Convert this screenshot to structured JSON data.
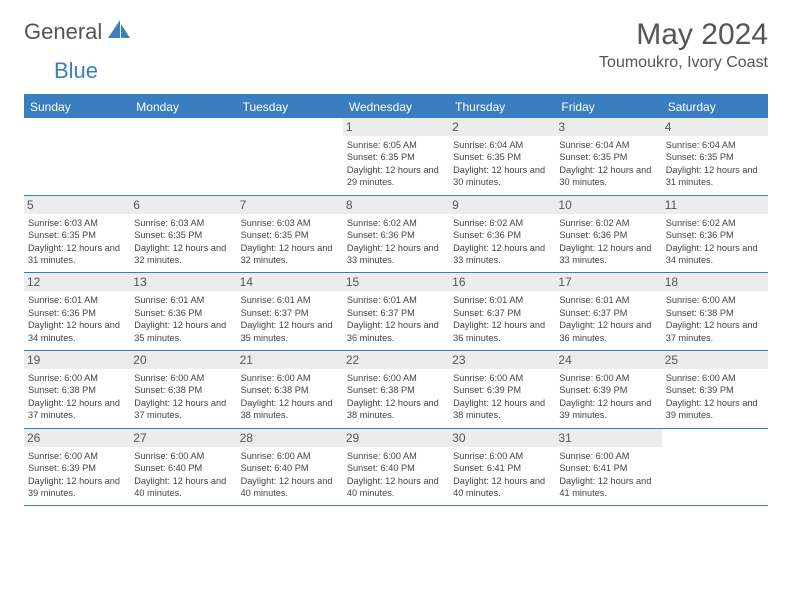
{
  "brand": {
    "part1": "General",
    "part2": "Blue"
  },
  "title": "May 2024",
  "location": "Toumoukro, Ivory Coast",
  "colors": {
    "accent": "#3a7ebf",
    "header_bg": "#3a7ebf",
    "header_text": "#ffffff",
    "daynum_bg": "#ececec",
    "text": "#444444",
    "background": "#ffffff"
  },
  "day_names": [
    "Sunday",
    "Monday",
    "Tuesday",
    "Wednesday",
    "Thursday",
    "Friday",
    "Saturday"
  ],
  "weeks": [
    [
      {
        "empty": true
      },
      {
        "empty": true
      },
      {
        "empty": true
      },
      {
        "day": "1",
        "sunrise": "6:05 AM",
        "sunset": "6:35 PM",
        "daylight": "12 hours and 29 minutes."
      },
      {
        "day": "2",
        "sunrise": "6:04 AM",
        "sunset": "6:35 PM",
        "daylight": "12 hours and 30 minutes."
      },
      {
        "day": "3",
        "sunrise": "6:04 AM",
        "sunset": "6:35 PM",
        "daylight": "12 hours and 30 minutes."
      },
      {
        "day": "4",
        "sunrise": "6:04 AM",
        "sunset": "6:35 PM",
        "daylight": "12 hours and 31 minutes."
      }
    ],
    [
      {
        "day": "5",
        "sunrise": "6:03 AM",
        "sunset": "6:35 PM",
        "daylight": "12 hours and 31 minutes."
      },
      {
        "day": "6",
        "sunrise": "6:03 AM",
        "sunset": "6:35 PM",
        "daylight": "12 hours and 32 minutes."
      },
      {
        "day": "7",
        "sunrise": "6:03 AM",
        "sunset": "6:35 PM",
        "daylight": "12 hours and 32 minutes."
      },
      {
        "day": "8",
        "sunrise": "6:02 AM",
        "sunset": "6:36 PM",
        "daylight": "12 hours and 33 minutes."
      },
      {
        "day": "9",
        "sunrise": "6:02 AM",
        "sunset": "6:36 PM",
        "daylight": "12 hours and 33 minutes."
      },
      {
        "day": "10",
        "sunrise": "6:02 AM",
        "sunset": "6:36 PM",
        "daylight": "12 hours and 33 minutes."
      },
      {
        "day": "11",
        "sunrise": "6:02 AM",
        "sunset": "6:36 PM",
        "daylight": "12 hours and 34 minutes."
      }
    ],
    [
      {
        "day": "12",
        "sunrise": "6:01 AM",
        "sunset": "6:36 PM",
        "daylight": "12 hours and 34 minutes."
      },
      {
        "day": "13",
        "sunrise": "6:01 AM",
        "sunset": "6:36 PM",
        "daylight": "12 hours and 35 minutes."
      },
      {
        "day": "14",
        "sunrise": "6:01 AM",
        "sunset": "6:37 PM",
        "daylight": "12 hours and 35 minutes."
      },
      {
        "day": "15",
        "sunrise": "6:01 AM",
        "sunset": "6:37 PM",
        "daylight": "12 hours and 36 minutes."
      },
      {
        "day": "16",
        "sunrise": "6:01 AM",
        "sunset": "6:37 PM",
        "daylight": "12 hours and 36 minutes."
      },
      {
        "day": "17",
        "sunrise": "6:01 AM",
        "sunset": "6:37 PM",
        "daylight": "12 hours and 36 minutes."
      },
      {
        "day": "18",
        "sunrise": "6:00 AM",
        "sunset": "6:38 PM",
        "daylight": "12 hours and 37 minutes."
      }
    ],
    [
      {
        "day": "19",
        "sunrise": "6:00 AM",
        "sunset": "6:38 PM",
        "daylight": "12 hours and 37 minutes."
      },
      {
        "day": "20",
        "sunrise": "6:00 AM",
        "sunset": "6:38 PM",
        "daylight": "12 hours and 37 minutes."
      },
      {
        "day": "21",
        "sunrise": "6:00 AM",
        "sunset": "6:38 PM",
        "daylight": "12 hours and 38 minutes."
      },
      {
        "day": "22",
        "sunrise": "6:00 AM",
        "sunset": "6:38 PM",
        "daylight": "12 hours and 38 minutes."
      },
      {
        "day": "23",
        "sunrise": "6:00 AM",
        "sunset": "6:39 PM",
        "daylight": "12 hours and 38 minutes."
      },
      {
        "day": "24",
        "sunrise": "6:00 AM",
        "sunset": "6:39 PM",
        "daylight": "12 hours and 39 minutes."
      },
      {
        "day": "25",
        "sunrise": "6:00 AM",
        "sunset": "6:39 PM",
        "daylight": "12 hours and 39 minutes."
      }
    ],
    [
      {
        "day": "26",
        "sunrise": "6:00 AM",
        "sunset": "6:39 PM",
        "daylight": "12 hours and 39 minutes."
      },
      {
        "day": "27",
        "sunrise": "6:00 AM",
        "sunset": "6:40 PM",
        "daylight": "12 hours and 40 minutes."
      },
      {
        "day": "28",
        "sunrise": "6:00 AM",
        "sunset": "6:40 PM",
        "daylight": "12 hours and 40 minutes."
      },
      {
        "day": "29",
        "sunrise": "6:00 AM",
        "sunset": "6:40 PM",
        "daylight": "12 hours and 40 minutes."
      },
      {
        "day": "30",
        "sunrise": "6:00 AM",
        "sunset": "6:41 PM",
        "daylight": "12 hours and 40 minutes."
      },
      {
        "day": "31",
        "sunrise": "6:00 AM",
        "sunset": "6:41 PM",
        "daylight": "12 hours and 41 minutes."
      },
      {
        "empty": true
      }
    ]
  ],
  "labels": {
    "sunrise": "Sunrise: ",
    "sunset": "Sunset: ",
    "daylight": "Daylight: "
  }
}
